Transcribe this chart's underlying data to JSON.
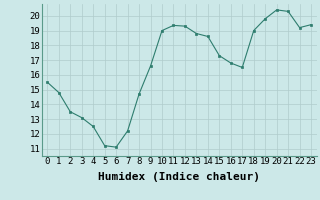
{
  "x": [
    0,
    1,
    2,
    3,
    4,
    5,
    6,
    7,
    8,
    9,
    10,
    11,
    12,
    13,
    14,
    15,
    16,
    17,
    18,
    19,
    20,
    21,
    22,
    23
  ],
  "y": [
    15.5,
    14.8,
    13.5,
    13.1,
    12.5,
    11.2,
    11.1,
    12.2,
    14.7,
    16.6,
    19.0,
    19.35,
    19.3,
    18.8,
    18.6,
    17.3,
    16.8,
    16.5,
    19.0,
    19.8,
    20.4,
    20.3,
    19.2,
    19.4
  ],
  "line_color": "#2e7d6e",
  "marker_color": "#2e7d6e",
  "bg_color": "#cce8e8",
  "grid_color": "#b0cccc",
  "xlabel": "Humidex (Indice chaleur)",
  "xlabel_fontsize": 8,
  "xlim": [
    -0.5,
    23.5
  ],
  "ylim": [
    10.5,
    20.8
  ],
  "yticks": [
    11,
    12,
    13,
    14,
    15,
    16,
    17,
    18,
    19,
    20
  ],
  "xtick_labels": [
    "0",
    "1",
    "2",
    "3",
    "4",
    "5",
    "6",
    "7",
    "8",
    "9",
    "10",
    "11",
    "12",
    "13",
    "14",
    "15",
    "16",
    "17",
    "18",
    "19",
    "20",
    "21",
    "22",
    "23"
  ],
  "tick_fontsize": 6.5
}
